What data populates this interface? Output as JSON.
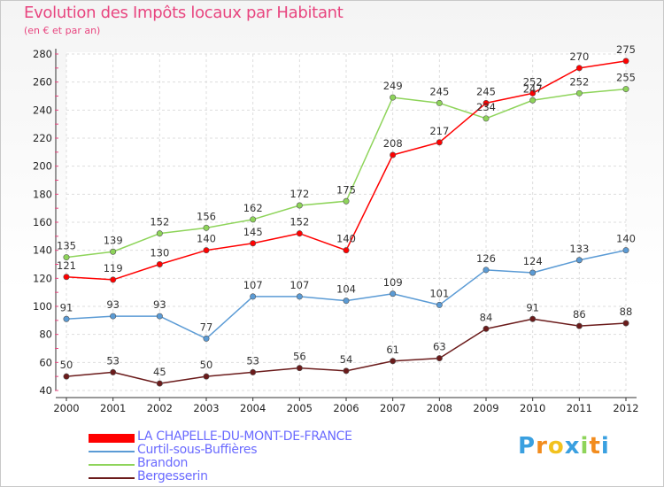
{
  "title": "Evolution des Impôts locaux par Habitant",
  "subtitle": "(en € et par an)",
  "logo_text": "Proxiti",
  "chart_data": {
    "type": "line",
    "x": [
      "2000",
      "2001",
      "2002",
      "2003",
      "2004",
      "2005",
      "2006",
      "2007",
      "2008",
      "2009",
      "2010",
      "2011",
      "2012"
    ],
    "ylim": [
      40,
      280
    ],
    "yticks": [
      40,
      60,
      80,
      100,
      120,
      140,
      160,
      180,
      200,
      220,
      240,
      260,
      280
    ],
    "grid": true,
    "legend_position": "bottom-left",
    "series": [
      {
        "name": "Bergesserin",
        "color": "#6b1b1b",
        "values": [
          50,
          53,
          45,
          50,
          53,
          56,
          54,
          61,
          63,
          84,
          91,
          86,
          88
        ]
      },
      {
        "name": "Curtil-sous-Buffières",
        "color": "#5b9bd5",
        "values": [
          91,
          93,
          93,
          77,
          107,
          107,
          104,
          109,
          101,
          126,
          124,
          133,
          140
        ]
      },
      {
        "name": "Brandon",
        "color": "#8ed45a",
        "values": [
          135,
          139,
          152,
          156,
          162,
          172,
          175,
          249,
          245,
          234,
          247,
          252,
          255
        ]
      },
      {
        "name": "LA CHAPELLE-DU-MONT-DE-FRANCE",
        "color": "#ff0000",
        "values": [
          121,
          119,
          130,
          140,
          145,
          152,
          140,
          208,
          217,
          245,
          252,
          270,
          275
        ]
      }
    ]
  },
  "legend": [
    {
      "label": "LA CHAPELLE-DU-MONT-DE-FRANCE",
      "color": "#ff0000"
    },
    {
      "label": "Curtil-sous-Buffières",
      "color": "#5b9bd5"
    },
    {
      "label": "Brandon",
      "color": "#8ed45a"
    },
    {
      "label": "Bergesserin",
      "color": "#6b1b1b"
    }
  ]
}
